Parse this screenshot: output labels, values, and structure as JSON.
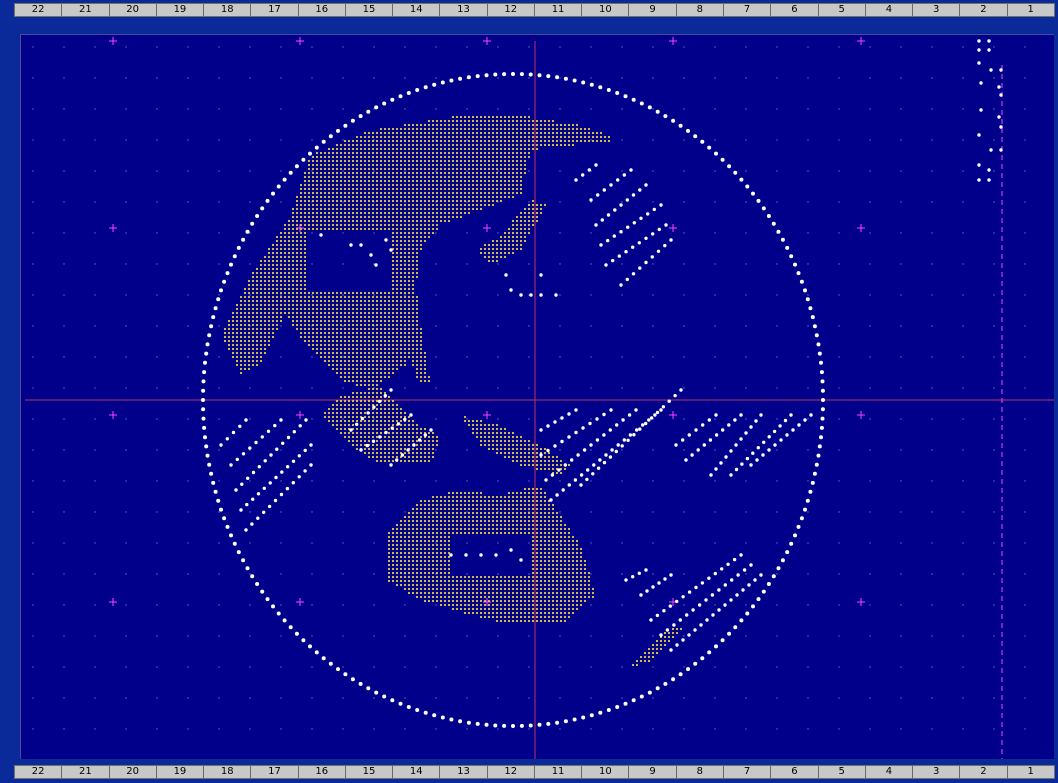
{
  "ruler": {
    "columns": [
      "22",
      "21",
      "20",
      "19",
      "18",
      "17",
      "16",
      "15",
      "14",
      "13",
      "12",
      "11",
      "10",
      "9",
      "8",
      "7",
      "6",
      "5",
      "4",
      "3",
      "2",
      "1"
    ]
  },
  "colors": {
    "background": "#00008b",
    "frame": "#0a2a9a",
    "grid_dot": "#5a6fd0",
    "crosshair": "#c0306a",
    "guide_plus": "#ff40ff",
    "globe_outline": "#ffffff",
    "land": "#e8d040",
    "signal": "#ffffff",
    "guide_dashed": "#ff40ff"
  },
  "icons": {
    "guide_marker": "plus-marker-icon",
    "crosshair": "crosshair-icon"
  }
}
